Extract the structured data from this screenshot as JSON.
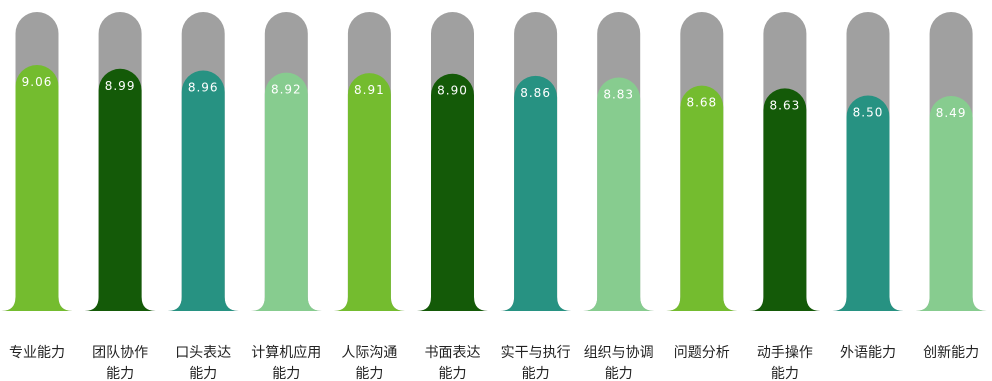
{
  "chart_data": {
    "type": "bar",
    "categories": [
      "专业能力",
      "团队协作能力",
      "口头表达能力",
      "计算机应用能力",
      "人际沟通能力",
      "书面表达能力",
      "实干与执行能力",
      "组织与协调能力",
      "问题分析",
      "动手操作能力",
      "外语能力",
      "创新能力"
    ],
    "category_lines": [
      [
        "专业能力"
      ],
      [
        "团队协作",
        "能力"
      ],
      [
        "口头表达",
        "能力"
      ],
      [
        "计算机应用",
        "能力"
      ],
      [
        "人际沟通",
        "能力"
      ],
      [
        "书面表达",
        "能力"
      ],
      [
        "实干与执行",
        "能力"
      ],
      [
        "组织与协调",
        "能力"
      ],
      [
        "问题分析"
      ],
      [
        "动手操作",
        "能力"
      ],
      [
        "外语能力"
      ],
      [
        "创新能力"
      ]
    ],
    "values": [
      9.06,
      8.99,
      8.96,
      8.92,
      8.91,
      8.9,
      8.86,
      8.83,
      8.68,
      8.63,
      8.5,
      8.49
    ],
    "value_labels": [
      "9.06",
      "8.99",
      "8.96",
      "8.92",
      "8.91",
      "8.90",
      "8.86",
      "8.83",
      "8.68",
      "8.63",
      "8.50",
      "8.49"
    ],
    "background_color": "#a0a0a0",
    "colors": [
      "#74bc2f",
      "#145a08",
      "#279282",
      "#87cc8f",
      "#74bc2f",
      "#145a08",
      "#279282",
      "#87cc8f",
      "#74bc2f",
      "#145a08",
      "#279282",
      "#87cc8f"
    ],
    "ylim": [
      0,
      10
    ]
  }
}
